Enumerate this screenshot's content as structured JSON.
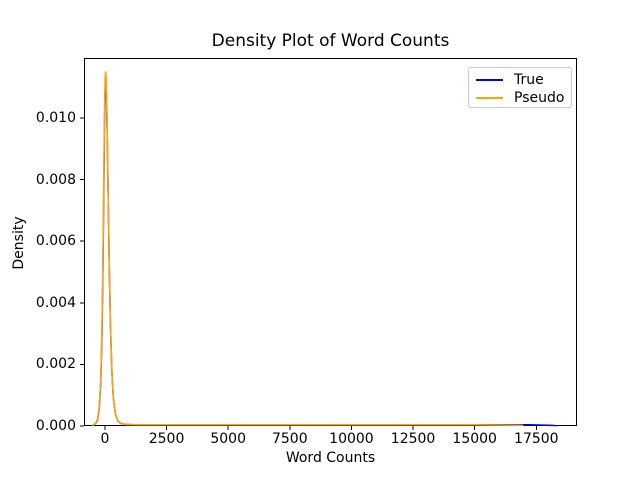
{
  "figure": {
    "title": "Density Plot of Word Counts",
    "xlabel": "Word Counts",
    "ylabel": "Density",
    "background": "#ffffff"
  },
  "legend": {
    "position": "upper right",
    "items": [
      {
        "label": "True",
        "color": "#0000ff"
      },
      {
        "label": "Pseudo",
        "color": "#ffa500"
      }
    ]
  },
  "colors": {
    "spine": "#000000",
    "tick": "#000000",
    "text": "#000000",
    "legend_border": "#cccccc",
    "series_true": "#0000ff",
    "series_pseudo": "#ffa500"
  },
  "chart_data": {
    "type": "line",
    "title": "Density Plot of Word Counts",
    "xlabel": "Word Counts",
    "ylabel": "Density",
    "xlim": [
      -850,
      19150
    ],
    "ylim": [
      0,
      0.01195
    ],
    "grid": false,
    "legend_position": "upper right",
    "xticks": {
      "values": [
        0,
        2500,
        5000,
        7500,
        10000,
        12500,
        15000,
        17500
      ],
      "labels": [
        "0",
        "2500",
        "5000",
        "7500",
        "10000",
        "12500",
        "15000",
        "17500"
      ]
    },
    "yticks": {
      "values": [
        0,
        0.002,
        0.004,
        0.006,
        0.008,
        0.01
      ],
      "labels": [
        "0.000",
        "0.002",
        "0.004",
        "0.006",
        "0.008",
        "0.010"
      ]
    },
    "series": [
      {
        "name": "True",
        "color": "#0000ff",
        "linewidth": 1.5,
        "peak": {
          "x": 35,
          "y": 0.0113
        },
        "x": [
          -500,
          -380,
          -300,
          -230,
          -170,
          -120,
          -80,
          -45,
          -15,
          10,
          35,
          60,
          90,
          130,
          175,
          225,
          280,
          340,
          420,
          520,
          650,
          850,
          1200,
          2000,
          4000,
          8000,
          12000,
          16000,
          17200,
          17800,
          18150,
          18300
        ],
        "y": [
          2e-05,
          8e-05,
          0.0002,
          0.0006,
          0.0014,
          0.003,
          0.0052,
          0.0078,
          0.01,
          0.0111,
          0.0113,
          0.0108,
          0.0096,
          0.0075,
          0.0052,
          0.0032,
          0.0018,
          0.0009,
          0.0004,
          0.00017,
          8e-05,
          5e-05,
          4e-05,
          4e-05,
          4e-05,
          4e-05,
          4e-05,
          4e-05,
          4e-05,
          3e-05,
          2e-05,
          1e-05
        ]
      },
      {
        "name": "Pseudo",
        "color": "#ffa500",
        "linewidth": 1.5,
        "peak": {
          "x": 35,
          "y": 0.0115
        },
        "x": [
          -500,
          -380,
          -300,
          -230,
          -170,
          -120,
          -80,
          -45,
          -15,
          10,
          35,
          60,
          90,
          130,
          175,
          225,
          280,
          340,
          420,
          520,
          650,
          850,
          1200,
          2000,
          4000,
          8000,
          12000,
          15000,
          16400,
          16950
        ],
        "y": [
          2e-05,
          9e-05,
          0.00022,
          0.00065,
          0.0015,
          0.0032,
          0.0055,
          0.0082,
          0.0104,
          0.0114,
          0.0115,
          0.011,
          0.0097,
          0.0076,
          0.0053,
          0.0033,
          0.0018,
          0.0009,
          0.0004,
          0.00017,
          8e-05,
          5e-05,
          4e-05,
          4e-05,
          4e-05,
          4e-05,
          4e-05,
          4e-05,
          3e-05,
          2e-05
        ]
      }
    ]
  }
}
